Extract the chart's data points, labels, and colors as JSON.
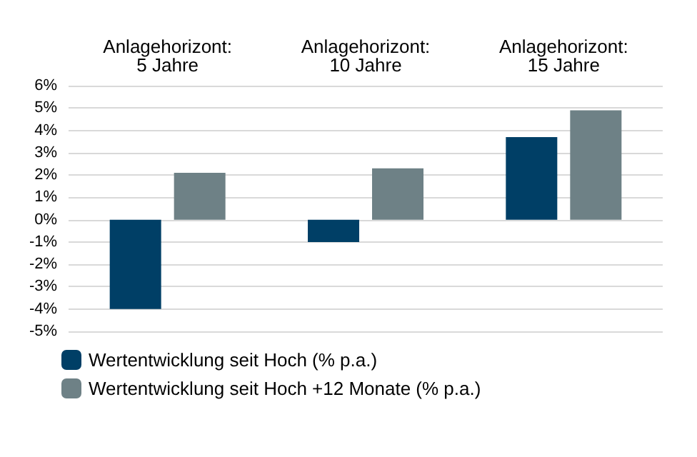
{
  "chart_data": {
    "type": "bar",
    "categories": [
      "Anlagehorizont:\n5 Jahre",
      "Anlagehorizont:\n10 Jahre",
      "Anlagehorizont:\n15 Jahre"
    ],
    "series": [
      {
        "name": "Wertentwicklung seit Hoch (% p.a.)",
        "color": "#003f66",
        "values": [
          -4.0,
          -1.0,
          3.7
        ]
      },
      {
        "name": "Wertentwicklung seit Hoch +12 Monate (% p.a.)",
        "color": "#6e8186",
        "values": [
          2.1,
          2.3,
          4.9
        ]
      }
    ],
    "ylim": [
      -5,
      6
    ],
    "yticks": [
      {
        "value": -5,
        "label": "-5%"
      },
      {
        "value": -4,
        "label": "-4%"
      },
      {
        "value": -3,
        "label": "-3%"
      },
      {
        "value": -2,
        "label": "-2%"
      },
      {
        "value": -1,
        "label": "-1%"
      },
      {
        "value": 0,
        "label": "0%"
      },
      {
        "value": 1,
        "label": "1%"
      },
      {
        "value": 2,
        "label": "2%"
      },
      {
        "value": 3,
        "label": "3%"
      },
      {
        "value": 4,
        "label": "4%"
      },
      {
        "value": 5,
        "label": "5%"
      },
      {
        "value": 6,
        "label": "6%"
      }
    ],
    "grid": "y",
    "legend": "bottom left"
  }
}
